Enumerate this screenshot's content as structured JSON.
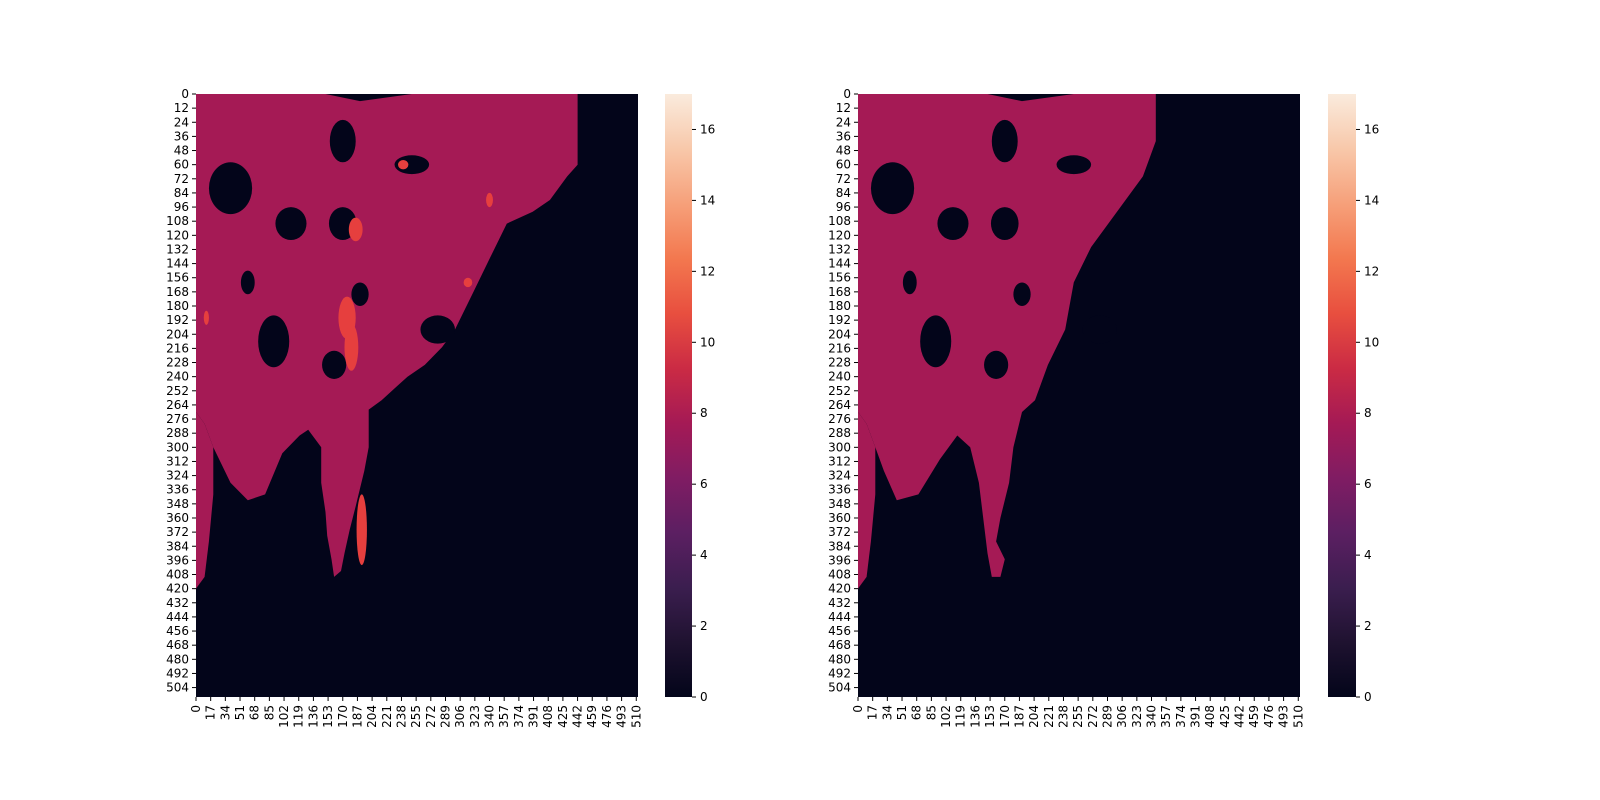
{
  "chart_data": [
    {
      "type": "heatmap",
      "title": "",
      "xlabel": "",
      "ylabel": "",
      "x_ticks": [
        "0",
        "17",
        "34",
        "51",
        "68",
        "85",
        "102",
        "119",
        "136",
        "153",
        "170",
        "187",
        "204",
        "221",
        "238",
        "255",
        "272",
        "289",
        "306",
        "323",
        "340",
        "357",
        "374",
        "391",
        "408",
        "425",
        "442",
        "459",
        "476",
        "493",
        "510"
      ],
      "y_ticks": [
        "0",
        "12",
        "24",
        "36",
        "48",
        "60",
        "72",
        "84",
        "96",
        "108",
        "120",
        "132",
        "144",
        "156",
        "168",
        "180",
        "192",
        "204",
        "216",
        "228",
        "240",
        "252",
        "264",
        "276",
        "288",
        "300",
        "312",
        "324",
        "336",
        "348",
        "360",
        "372",
        "384",
        "396",
        "408",
        "420",
        "432",
        "444",
        "456",
        "468",
        "480",
        "492",
        "504"
      ],
      "xlim": [
        0,
        512
      ],
      "ylim": [
        512,
        0
      ],
      "colorbar": {
        "vmin": 0,
        "vmax": 17,
        "ticks": [
          "0",
          "2",
          "4",
          "6",
          "8",
          "10",
          "12",
          "14",
          "16"
        ]
      },
      "values_present": [
        0,
        8,
        10
      ],
      "description_of_fill": "background value 0; large contiguous region value 8 covering upper-left landmass down to ~row 410; scattered value-10 patches"
    },
    {
      "type": "heatmap",
      "title": "",
      "xlabel": "",
      "ylabel": "",
      "x_ticks": [
        "0",
        "17",
        "34",
        "51",
        "68",
        "85",
        "102",
        "119",
        "136",
        "153",
        "170",
        "187",
        "204",
        "221",
        "238",
        "255",
        "272",
        "289",
        "306",
        "323",
        "340",
        "357",
        "374",
        "391",
        "408",
        "425",
        "442",
        "459",
        "476",
        "493",
        "510"
      ],
      "y_ticks": [
        "0",
        "12",
        "24",
        "36",
        "48",
        "60",
        "72",
        "84",
        "96",
        "108",
        "120",
        "132",
        "144",
        "156",
        "168",
        "180",
        "192",
        "204",
        "216",
        "228",
        "240",
        "252",
        "264",
        "276",
        "288",
        "300",
        "312",
        "324",
        "336",
        "348",
        "360",
        "372",
        "384",
        "396",
        "408",
        "420",
        "432",
        "444",
        "456",
        "468",
        "480",
        "492",
        "504"
      ],
      "xlim": [
        0,
        512
      ],
      "ylim": [
        512,
        0
      ],
      "colorbar": {
        "vmin": 0,
        "vmax": 17,
        "ticks": [
          "0",
          "2",
          "4",
          "6",
          "8",
          "10",
          "12",
          "14",
          "16"
        ]
      },
      "values_present": [
        0,
        8
      ],
      "description_of_fill": "background value 0; contiguous region value 8 similar shape, coarser pixelation"
    }
  ],
  "colors": {
    "v0": "#03051A",
    "v8": "#A51A55",
    "v10": "#E63F3E",
    "colormap": [
      "#03051A",
      "#1f1230",
      "#3b1e4f",
      "#5c1f62",
      "#801c63",
      "#a51a55",
      "#cb2b44",
      "#e84f3f",
      "#f3784f",
      "#f6a07a",
      "#f8c8aa",
      "#faebdd"
    ]
  }
}
